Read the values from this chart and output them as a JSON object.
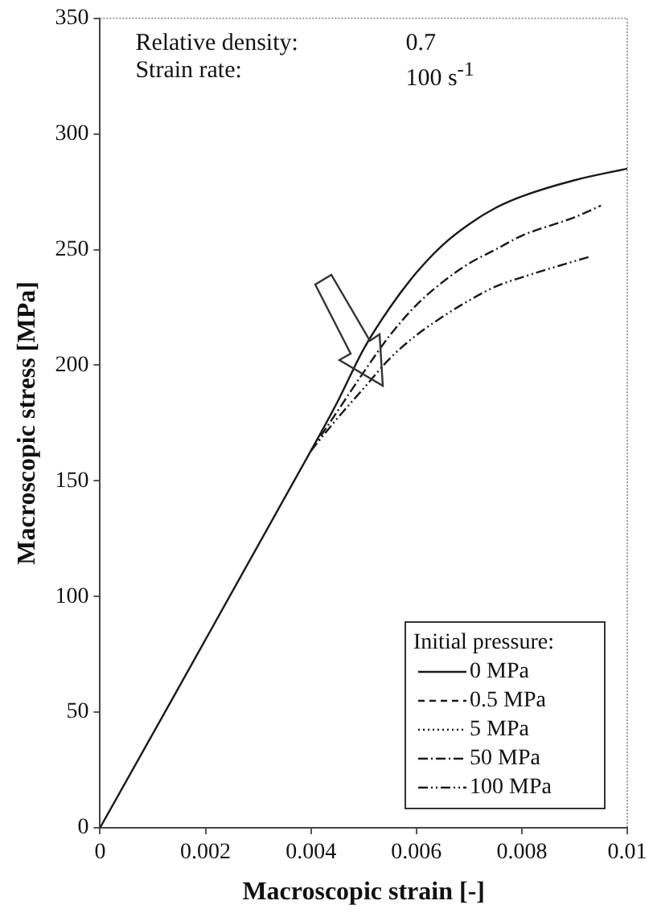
{
  "chart_data": {
    "type": "line",
    "xlabel": "Macroscopic strain [-]",
    "ylabel": "Macroscopic stress [MPa]",
    "legend_title": "Initial pressure:",
    "legend": "bottom right",
    "grid": false,
    "marker": "none",
    "xlim": [
      0,
      0.01
    ],
    "xticks": [
      0,
      0.002,
      0.004,
      0.006,
      0.008,
      0.01
    ],
    "ylim": [
      0,
      350
    ],
    "yticks": [
      0,
      50,
      100,
      150,
      200,
      250,
      300,
      350
    ],
    "annotations": [
      "Relative density:",
      "0.7",
      "Strain rate:",
      "100 s$^{-1}$"
    ],
    "series": [
      {
        "name": "0 MPa",
        "color": "#1a1a1a",
        "line_style": "solid",
        "x": [
          0,
          0.004,
          0.0045,
          0.005,
          0.0055,
          0.006,
          0.0065,
          0.007,
          0.0075,
          0.008,
          0.009,
          0.01
        ],
        "values": [
          0,
          163,
          184,
          207,
          225,
          240,
          252,
          261,
          268,
          273,
          280,
          285
        ]
      },
      {
        "name": "0.5 MPa",
        "color": "#1a1a1a",
        "line_style": "dashed"
      },
      {
        "name": "5 MPa",
        "color": "#1a1a1a",
        "line_style": "dotted"
      },
      {
        "name": "50 MPa",
        "color": "#1a1a1a",
        "line_style": "dashdot",
        "x": [
          0.004,
          0.0045,
          0.005,
          0.0055,
          0.006,
          0.0065,
          0.007,
          0.0075,
          0.008,
          0.009,
          0.0095
        ],
        "values": [
          163,
          180,
          197,
          213,
          226,
          236,
          244,
          250,
          256,
          264,
          269
        ]
      },
      {
        "name": "100 MPa",
        "color": "#1a1a1a",
        "line_style": "dashdotdot",
        "x": [
          0.004,
          0.0045,
          0.005,
          0.0055,
          0.006,
          0.0065,
          0.007,
          0.0075,
          0.008,
          0.009,
          0.0093
        ],
        "values": [
          163,
          177,
          190,
          203,
          213,
          221,
          228,
          234,
          238,
          245,
          247
        ]
      }
    ]
  }
}
